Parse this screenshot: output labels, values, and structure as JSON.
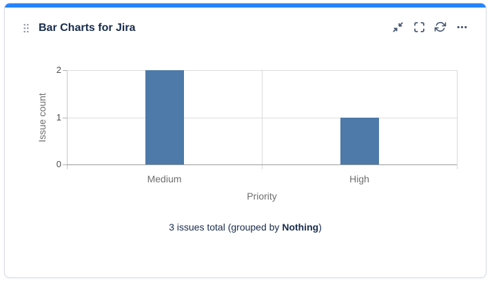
{
  "card": {
    "title": "Bar Charts for Jira",
    "accent_color": "#2684FF",
    "icons": {
      "drag": "drag-handle",
      "minimize": "collapse-diagonal-arrows",
      "expand": "fullscreen-brackets",
      "refresh": "refresh-circular-arrows",
      "more": "ellipsis"
    }
  },
  "chart_data": {
    "type": "bar",
    "title": "",
    "categories": [
      "Medium",
      "High"
    ],
    "values": [
      2,
      1
    ],
    "xlabel": "Priority",
    "ylabel": "Issue count",
    "ylim": [
      0,
      2
    ],
    "yticks": [
      0,
      1,
      2
    ],
    "bar_color": "#4d7aa8",
    "grid": true,
    "legend": false
  },
  "summary": {
    "prefix": "3 issues total (grouped by ",
    "group_by": "Nothing",
    "suffix": ")"
  }
}
